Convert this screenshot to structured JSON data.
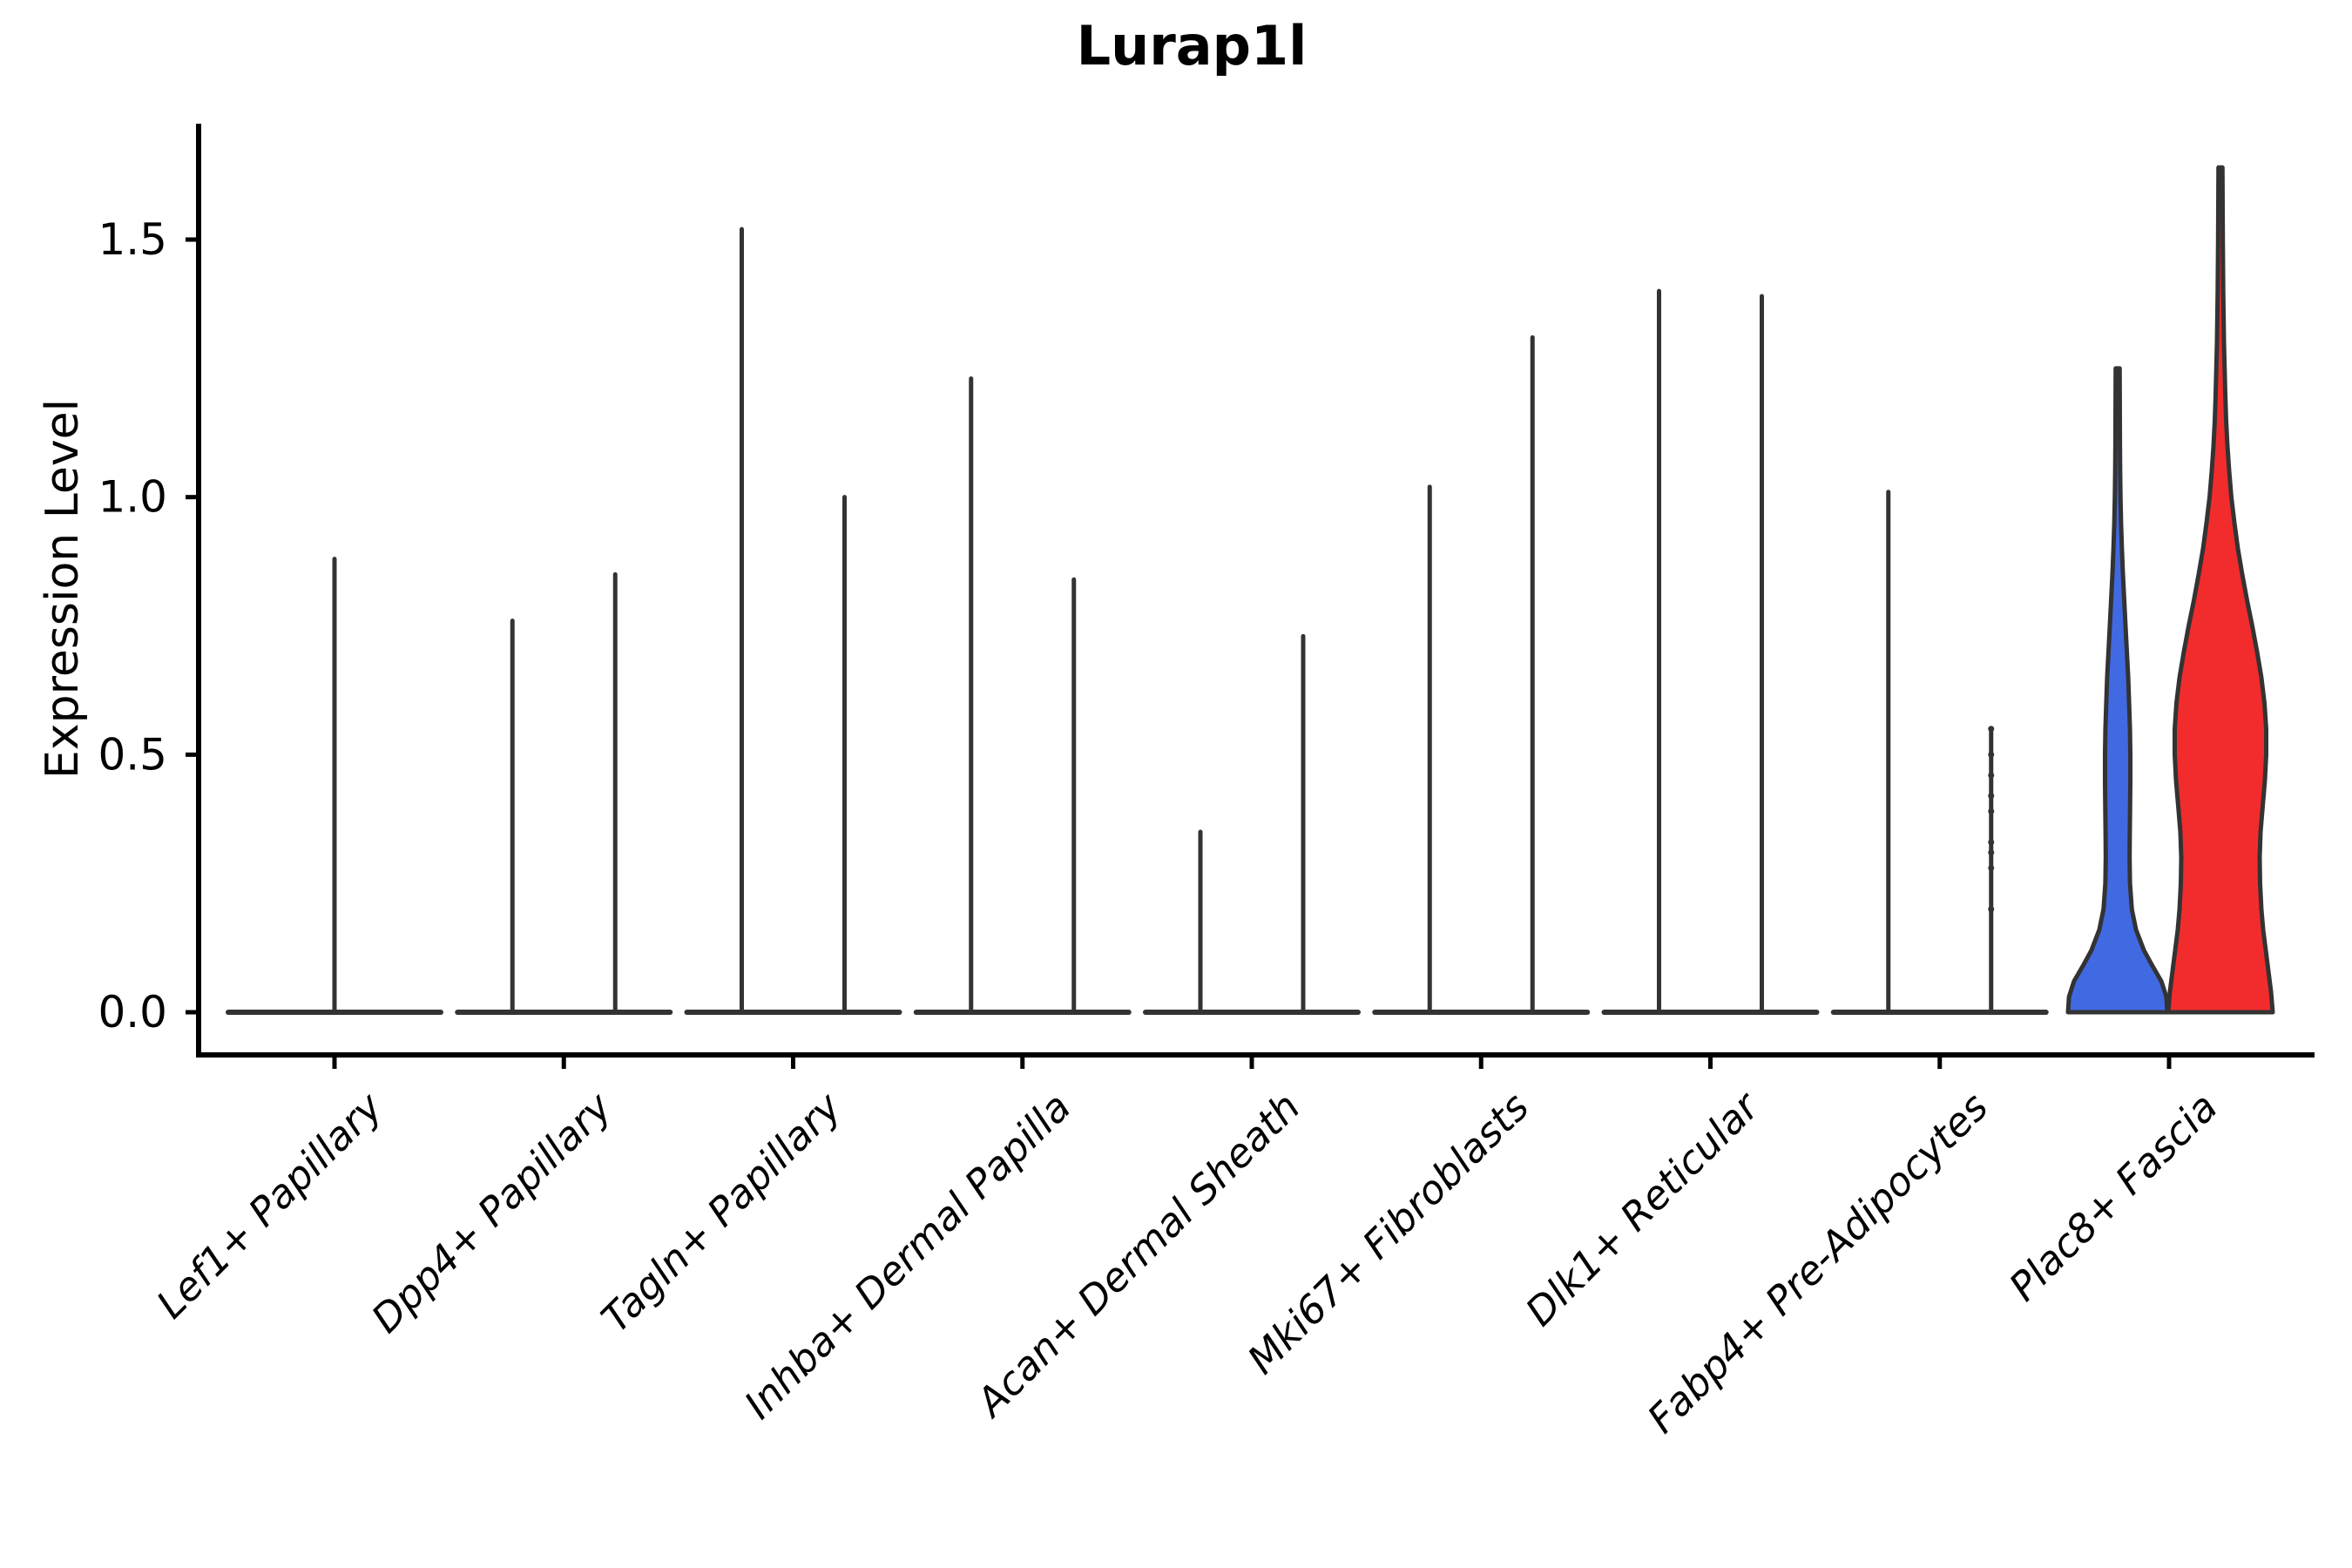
{
  "chart_data": {
    "type": "violin",
    "title": "Lurap1l",
    "ylabel": "Expression Level",
    "xlabel": "",
    "ylim": [
      0,
      1.72
    ],
    "grid": false,
    "legend": "none",
    "yticks": [
      {
        "value": 0.0,
        "label": "0.0"
      },
      {
        "value": 0.5,
        "label": "0.5"
      },
      {
        "value": 1.0,
        "label": "1.0"
      },
      {
        "value": 1.5,
        "label": "1.5"
      }
    ],
    "colors": {
      "axis": "#000000",
      "violin_stroke": "#333333",
      "text": "#000000",
      "fill_blue": "#4169E1",
      "fill_red": "#F22C2C"
    },
    "categories": [
      {
        "label": "Lef1+ Papillary",
        "violins": [
          {
            "shape": "spike",
            "dodge": 0,
            "peak": 0.88
          }
        ]
      },
      {
        "label": "Dpp4+ Papillary",
        "violins": [
          {
            "shape": "spike",
            "dodge": -1,
            "peak": 0.76
          },
          {
            "shape": "spike",
            "dodge": 1,
            "peak": 0.85
          }
        ]
      },
      {
        "label": "Tagln+ Papillary",
        "violins": [
          {
            "shape": "spike",
            "dodge": -1,
            "peak": 1.52
          },
          {
            "shape": "spike",
            "dodge": 1,
            "peak": 1.0
          }
        ]
      },
      {
        "label": "Inhba+ Dermal Papilla",
        "violins": [
          {
            "shape": "spike",
            "dodge": -1,
            "peak": 1.23
          },
          {
            "shape": "spike",
            "dodge": 1,
            "peak": 0.84
          }
        ]
      },
      {
        "label": "Acan+ Dermal Sheath",
        "violins": [
          {
            "shape": "spike",
            "dodge": -1,
            "peak": 0.35
          },
          {
            "shape": "spike",
            "dodge": 1,
            "peak": 0.73
          }
        ]
      },
      {
        "label": "Mki67+ Fibroblasts",
        "violins": [
          {
            "shape": "spike",
            "dodge": -1,
            "peak": 1.02
          },
          {
            "shape": "spike",
            "dodge": 1,
            "peak": 1.31
          }
        ]
      },
      {
        "label": "Dlk1+ Reticular",
        "violins": [
          {
            "shape": "spike",
            "dodge": -1,
            "peak": 1.4
          },
          {
            "shape": "spike",
            "dodge": 1,
            "peak": 1.39
          }
        ]
      },
      {
        "label": "Fabp4+ Pre-Adipocytes",
        "violins": [
          {
            "shape": "spike",
            "dodge": -1,
            "peak": 1.01
          },
          {
            "shape": "spike",
            "dodge": 1,
            "peak": 0.55,
            "points": [
              0.2,
              0.28,
              0.31,
              0.33,
              0.39,
              0.42,
              0.46,
              0.5,
              0.55
            ]
          }
        ]
      },
      {
        "label": "Plac8+ Fascia",
        "violins": [
          {
            "shape": "density",
            "dodge": -1,
            "peak": 1.25,
            "fill": "fill_blue",
            "base_half": 57,
            "profile": [
              [
                0,
                1.0
              ],
              [
                0.03,
                0.98
              ],
              [
                0.06,
                0.88
              ],
              [
                0.09,
                0.7
              ],
              [
                0.12,
                0.53
              ],
              [
                0.16,
                0.37
              ],
              [
                0.2,
                0.285
              ],
              [
                0.25,
                0.248
              ],
              [
                0.3,
                0.24
              ],
              [
                0.35,
                0.244
              ],
              [
                0.4,
                0.25
              ],
              [
                0.45,
                0.255
              ],
              [
                0.5,
                0.255
              ],
              [
                0.55,
                0.247
              ],
              [
                0.6,
                0.23
              ],
              [
                0.65,
                0.212
              ],
              [
                0.7,
                0.185
              ],
              [
                0.75,
                0.158
              ],
              [
                0.8,
                0.132
              ],
              [
                0.85,
                0.106
              ],
              [
                0.9,
                0.085
              ],
              [
                0.95,
                0.068
              ],
              [
                1.0,
                0.057
              ],
              [
                1.05,
                0.05
              ],
              [
                1.1,
                0.046
              ],
              [
                1.15,
                0.044
              ],
              [
                1.25,
                0.04
              ]
            ]
          },
          {
            "shape": "density",
            "dodge": 1,
            "peak": 1.64,
            "fill": "fill_red",
            "base_half": 60,
            "profile": [
              [
                0,
                1.0
              ],
              [
                0.04,
                0.967
              ],
              [
                0.08,
                0.917
              ],
              [
                0.12,
                0.867
              ],
              [
                0.16,
                0.817
              ],
              [
                0.2,
                0.783
              ],
              [
                0.25,
                0.758
              ],
              [
                0.3,
                0.75
              ],
              [
                0.35,
                0.767
              ],
              [
                0.4,
                0.808
              ],
              [
                0.45,
                0.85
              ],
              [
                0.5,
                0.875
              ],
              [
                0.55,
                0.875
              ],
              [
                0.6,
                0.842
              ],
              [
                0.65,
                0.783
              ],
              [
                0.7,
                0.7
              ],
              [
                0.75,
                0.608
              ],
              [
                0.8,
                0.508
              ],
              [
                0.85,
                0.417
              ],
              [
                0.9,
                0.333
              ],
              [
                0.95,
                0.267
              ],
              [
                1.0,
                0.208
              ],
              [
                1.05,
                0.167
              ],
              [
                1.1,
                0.133
              ],
              [
                1.15,
                0.108
              ],
              [
                1.2,
                0.092
              ],
              [
                1.3,
                0.067
              ],
              [
                1.4,
                0.053
              ],
              [
                1.5,
                0.045
              ],
              [
                1.64,
                0.038
              ]
            ]
          }
        ]
      }
    ]
  }
}
